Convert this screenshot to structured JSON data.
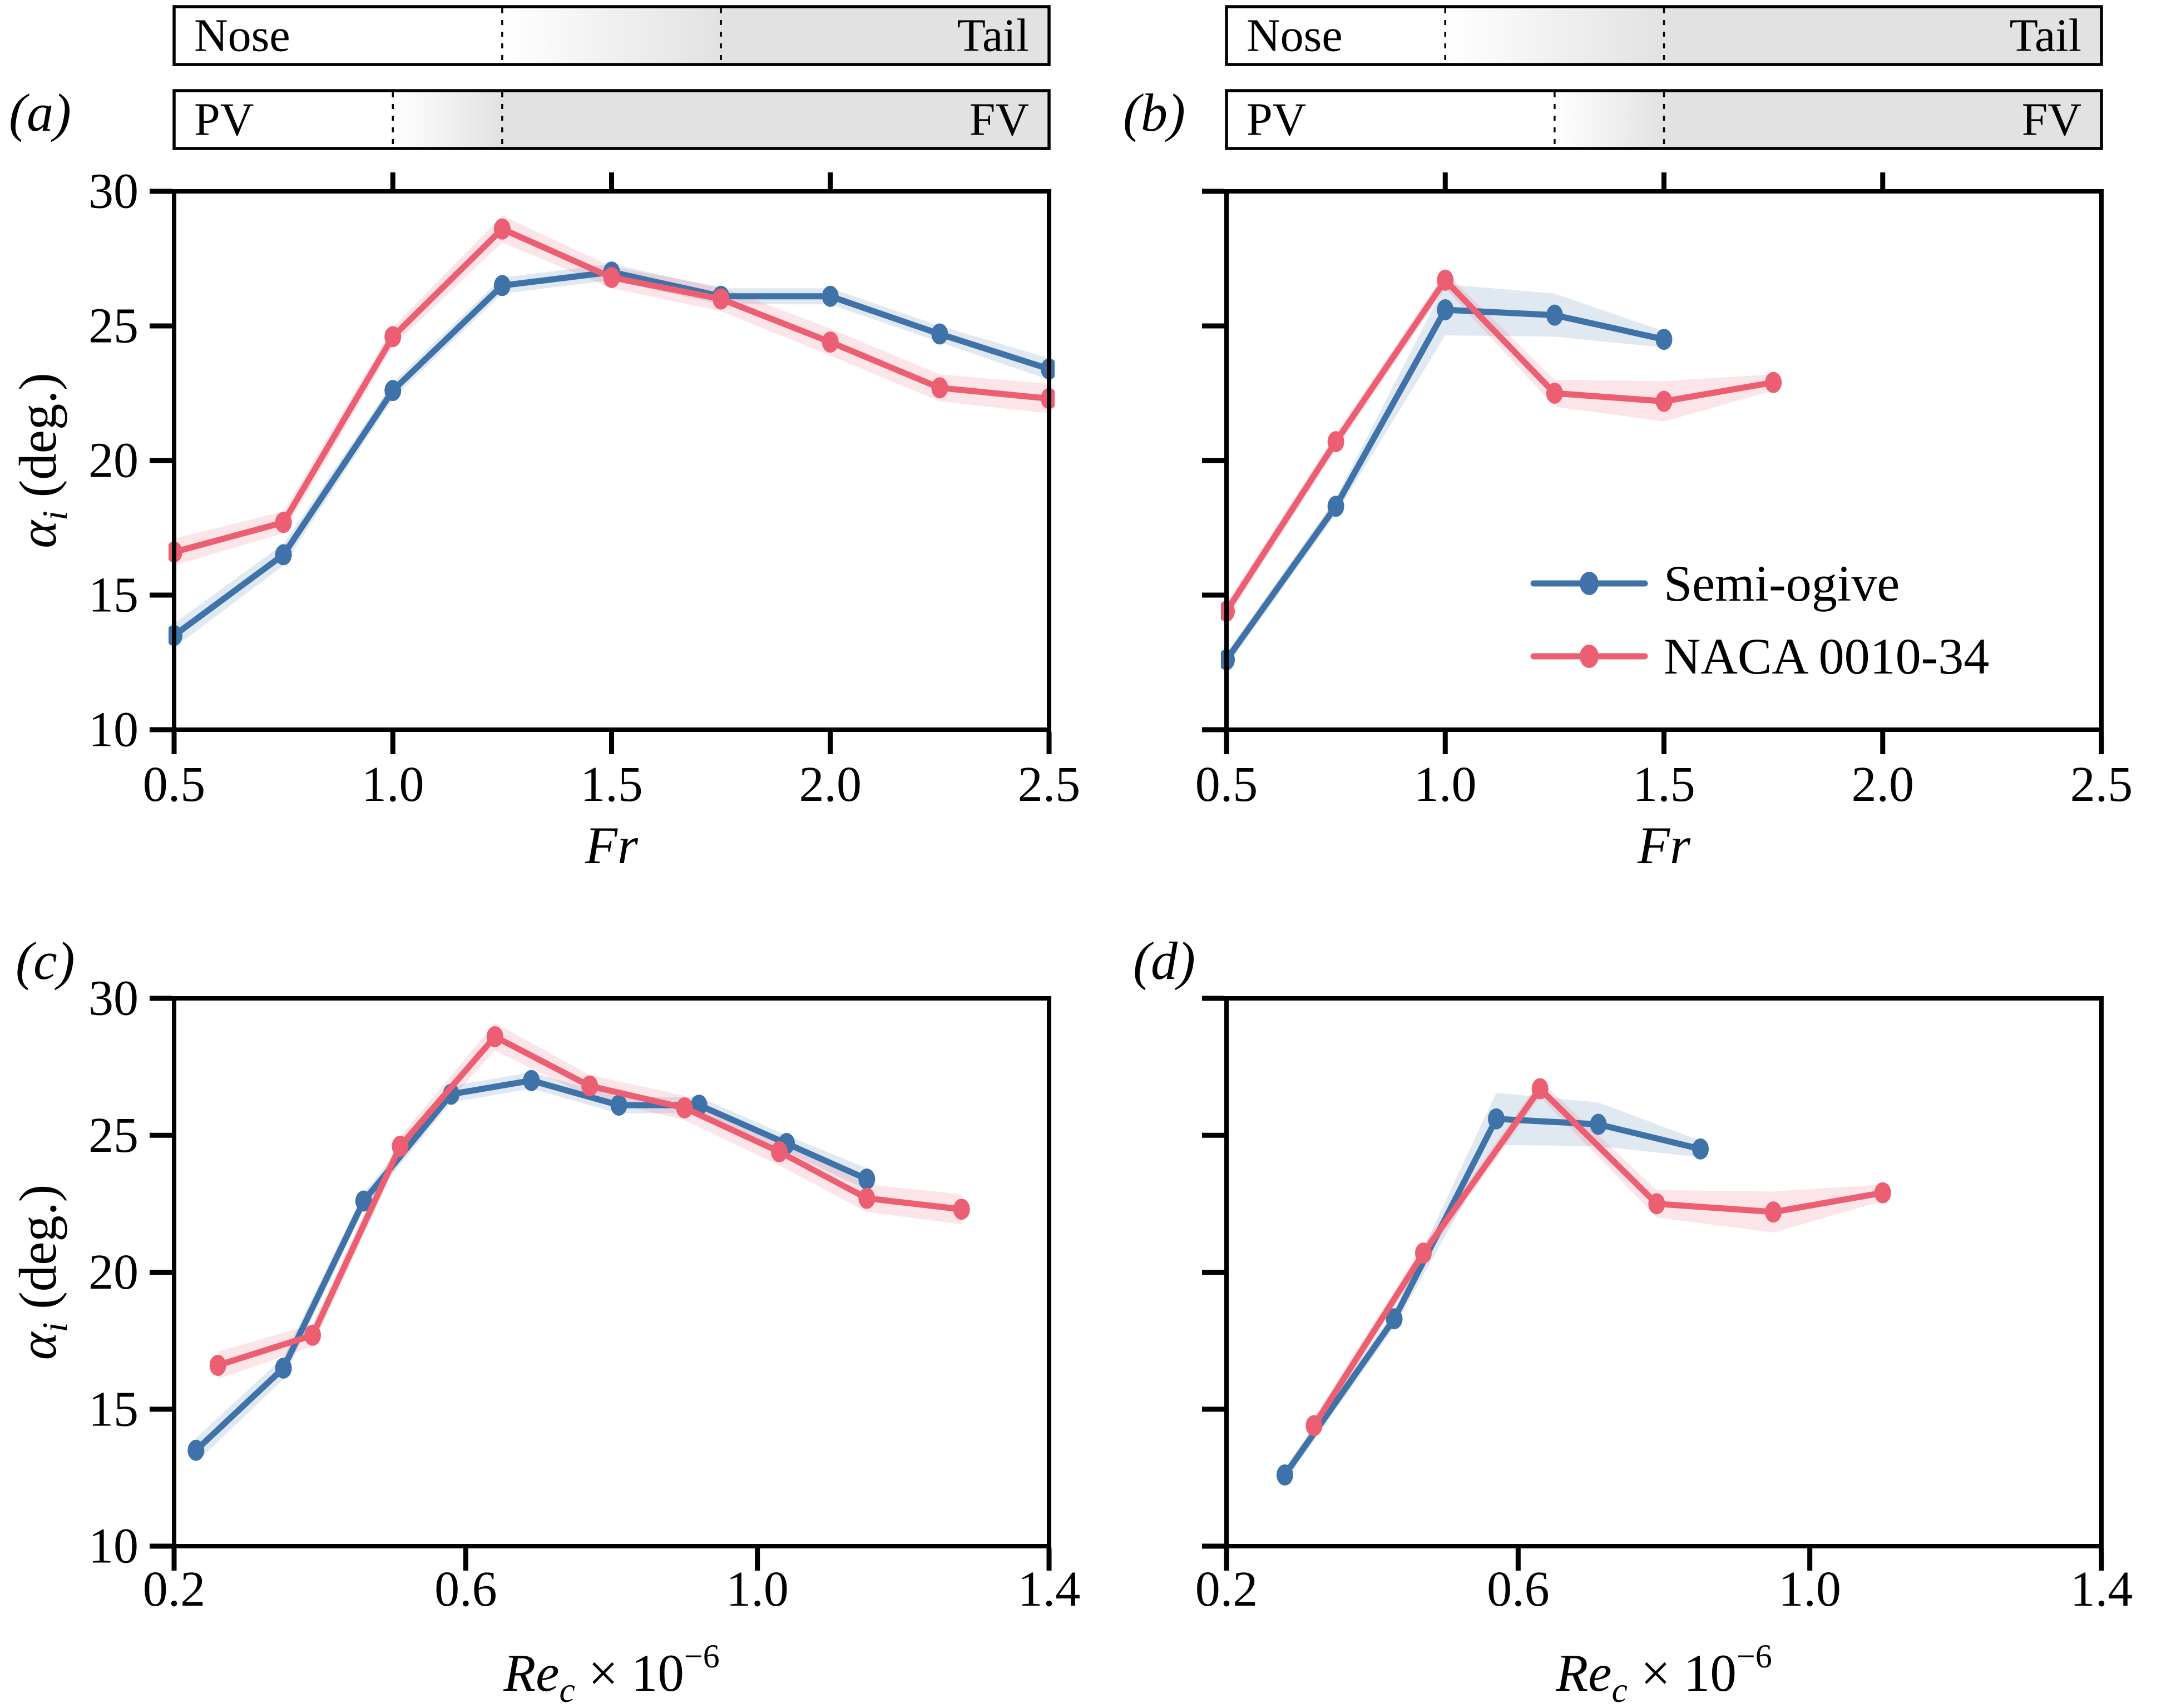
{
  "figure": {
    "background": "#ffffff",
    "colors": {
      "blue": "#3E72A8",
      "red": "#EC5F72",
      "band_opacity": 0.16,
      "bar_gray": "#E2E2E2",
      "axis": "#000000"
    },
    "legend": {
      "items": [
        {
          "label": "Semi-ogive",
          "color": "blue"
        },
        {
          "label": "NACA 0010-34",
          "color": "red"
        }
      ]
    }
  },
  "chart_data": [
    {
      "id": "a",
      "type": "line",
      "panel_label": "(a)",
      "xlabel": {
        "var": "Fr",
        "sub": "",
        "rest": "",
        "sup": ""
      },
      "ylabel": {
        "var": "α",
        "sub": "i",
        "rest": " (deg.)"
      },
      "xlim": [
        0.5,
        2.5
      ],
      "ylim": [
        10,
        30
      ],
      "x_ticks": [
        0.5,
        1.0,
        1.5,
        2.0,
        2.5
      ],
      "x_tick_labels": [
        "0.5",
        "1.0",
        "1.5",
        "2.0",
        "2.5"
      ],
      "y_ticks": [
        10,
        15,
        20,
        25,
        30
      ],
      "y_tick_labels": [
        "10",
        "15",
        "20",
        "25",
        "30"
      ],
      "top_ticks": [
        1.0,
        1.5,
        2.0
      ],
      "show_y_tick_labels": true,
      "grid": false,
      "header_bars": [
        {
          "left": "Nose",
          "right": "Tail",
          "fade_start": 1.25,
          "fade_end": 1.75
        },
        {
          "left": "PV",
          "right": "FV",
          "fade_start": 1.0,
          "fade_end": 1.25
        }
      ],
      "series": [
        {
          "name": "Semi-ogive",
          "color": "blue",
          "x": [
            0.5,
            0.75,
            1.0,
            1.25,
            1.5,
            1.75,
            2.0,
            2.25,
            2.5
          ],
          "y": [
            13.5,
            16.5,
            22.6,
            26.5,
            27.0,
            26.1,
            26.1,
            24.7,
            23.4
          ],
          "band": [
            0.45,
            0.4,
            0.3,
            0.3,
            0.3,
            0.3,
            0.3,
            0.3,
            0.4
          ]
        },
        {
          "name": "NACA 0010-34",
          "color": "red",
          "x": [
            0.5,
            0.75,
            1.0,
            1.25,
            1.5,
            1.75,
            2.0,
            2.25,
            2.5
          ],
          "y": [
            16.6,
            17.7,
            24.6,
            28.6,
            26.8,
            26.0,
            24.4,
            22.7,
            22.3
          ],
          "band": [
            0.5,
            0.4,
            0.35,
            0.5,
            0.4,
            0.45,
            0.5,
            0.5,
            0.55
          ]
        }
      ]
    },
    {
      "id": "b",
      "type": "line",
      "panel_label": "(b)",
      "xlabel": {
        "var": "Fr",
        "sub": "",
        "rest": "",
        "sup": ""
      },
      "ylabel": null,
      "xlim": [
        0.5,
        2.5
      ],
      "ylim": [
        10,
        30
      ],
      "x_ticks": [
        0.5,
        1.0,
        1.5,
        2.0,
        2.5
      ],
      "x_tick_labels": [
        "0.5",
        "1.0",
        "1.5",
        "2.0",
        "2.5"
      ],
      "y_ticks": [
        10,
        15,
        20,
        25,
        30
      ],
      "y_tick_labels": [],
      "top_ticks": [
        1.0,
        1.5,
        2.0
      ],
      "show_y_tick_labels": false,
      "grid": false,
      "show_legend": true,
      "header_bars": [
        {
          "left": "Nose",
          "right": "Tail",
          "fade_start": 1.0,
          "fade_end": 1.5
        },
        {
          "left": "PV",
          "right": "FV",
          "fade_start": 1.25,
          "fade_end": 1.5
        }
      ],
      "series": [
        {
          "name": "Semi-ogive",
          "color": "blue",
          "x": [
            0.5,
            0.75,
            1.0,
            1.25,
            1.5
          ],
          "y": [
            12.6,
            18.3,
            25.6,
            25.4,
            24.5
          ],
          "band": [
            0.25,
            0.3,
            0.95,
            0.8,
            0.3
          ]
        },
        {
          "name": "NACA 0010-34",
          "color": "red",
          "x": [
            0.5,
            0.75,
            1.0,
            1.25,
            1.5,
            1.75
          ],
          "y": [
            14.4,
            20.7,
            26.7,
            22.5,
            22.2,
            22.9
          ],
          "band": [
            0.3,
            0.3,
            0.3,
            0.5,
            0.75,
            0.3
          ]
        }
      ]
    },
    {
      "id": "c",
      "type": "line",
      "panel_label": "(c)",
      "xlabel": {
        "var": "Re",
        "sub": "c",
        "rest": " × 10",
        "sup": "−6"
      },
      "ylabel": {
        "var": "α",
        "sub": "i",
        "rest": " (deg.)"
      },
      "xlim": [
        0.2,
        1.4
      ],
      "ylim": [
        10,
        30
      ],
      "x_ticks": [
        0.2,
        0.6,
        1.0,
        1.4
      ],
      "x_tick_labels": [
        "0.2",
        "0.6",
        "1.0",
        "1.4"
      ],
      "y_ticks": [
        10,
        15,
        20,
        25,
        30
      ],
      "y_tick_labels": [
        "10",
        "15",
        "20",
        "25",
        "30"
      ],
      "top_ticks": [],
      "show_y_tick_labels": true,
      "grid": false,
      "series": [
        {
          "name": "Semi-ogive",
          "color": "blue",
          "x": [
            0.23,
            0.35,
            0.46,
            0.58,
            0.69,
            0.81,
            0.92,
            1.04,
            1.15
          ],
          "y": [
            13.5,
            16.5,
            22.6,
            26.5,
            27.0,
            26.1,
            26.1,
            24.7,
            23.4
          ],
          "band": [
            0.45,
            0.4,
            0.3,
            0.3,
            0.3,
            0.3,
            0.3,
            0.3,
            0.4
          ]
        },
        {
          "name": "NACA 0010-34",
          "color": "red",
          "x": [
            0.26,
            0.39,
            0.51,
            0.64,
            0.77,
            0.9,
            1.03,
            1.15,
            1.28
          ],
          "y": [
            16.6,
            17.7,
            24.6,
            28.6,
            26.8,
            26.0,
            24.4,
            22.7,
            22.3
          ],
          "band": [
            0.5,
            0.4,
            0.35,
            0.5,
            0.4,
            0.45,
            0.5,
            0.5,
            0.55
          ]
        }
      ]
    },
    {
      "id": "d",
      "type": "line",
      "panel_label": "(d)",
      "xlabel": {
        "var": "Re",
        "sub": "c",
        "rest": " × 10",
        "sup": "−6"
      },
      "ylabel": null,
      "xlim": [
        0.2,
        1.4
      ],
      "ylim": [
        10,
        30
      ],
      "x_ticks": [
        0.2,
        0.6,
        1.0,
        1.4
      ],
      "x_tick_labels": [
        "0.2",
        "0.6",
        "1.0",
        "1.4"
      ],
      "y_ticks": [
        10,
        15,
        20,
        25,
        30
      ],
      "y_tick_labels": [],
      "top_ticks": [],
      "show_y_tick_labels": false,
      "grid": false,
      "series": [
        {
          "name": "Semi-ogive",
          "color": "blue",
          "x": [
            0.28,
            0.43,
            0.57,
            0.71,
            0.85
          ],
          "y": [
            12.6,
            18.3,
            25.6,
            25.4,
            24.5
          ],
          "band": [
            0.25,
            0.3,
            0.95,
            0.8,
            0.3
          ]
        },
        {
          "name": "NACA 0010-34",
          "color": "red",
          "x": [
            0.32,
            0.47,
            0.63,
            0.79,
            0.95,
            1.1
          ],
          "y": [
            14.4,
            20.7,
            26.7,
            22.5,
            22.2,
            22.9
          ],
          "band": [
            0.3,
            0.3,
            0.3,
            0.5,
            0.75,
            0.3
          ]
        }
      ]
    }
  ]
}
